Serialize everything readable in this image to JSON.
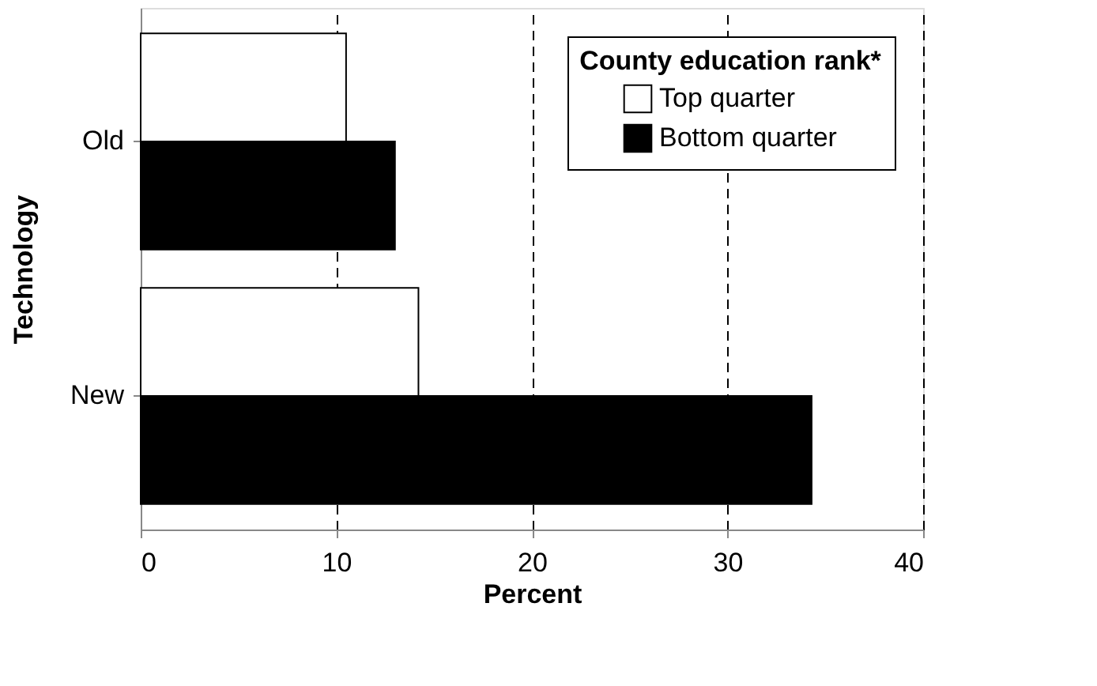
{
  "chart_data": {
    "type": "bar",
    "orientation": "horizontal",
    "categories": [
      "Old",
      "New"
    ],
    "series": [
      {
        "name": "Top quarter",
        "color": "#ffffff",
        "values": [
          10.5,
          14.2
        ]
      },
      {
        "name": "Bottom quarter",
        "color": "#000000",
        "values": [
          13,
          34.3
        ]
      }
    ],
    "xlabel": "Percent",
    "ylabel": "Technology",
    "legend_title": "County education rank*",
    "legend": "top right",
    "xlim": [
      0,
      40
    ],
    "xticks": [
      0,
      10,
      20,
      30,
      40
    ],
    "grid": "x",
    "line_style": "dashed"
  }
}
